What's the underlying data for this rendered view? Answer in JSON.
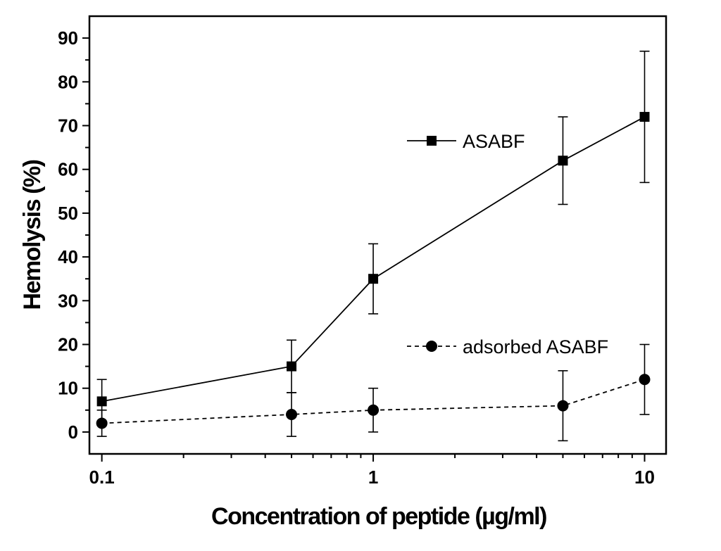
{
  "chart_data": {
    "type": "line",
    "xlabel": "Concentration of peptide (µg/ml)",
    "ylabel": "Hemolysis (%)",
    "xscale": "log",
    "xlim": [
      0.09,
      12
    ],
    "ylim": [
      -5,
      95
    ],
    "x_ticks": [
      0.1,
      1,
      10
    ],
    "x_tick_labels": [
      "0.1",
      "1",
      "10"
    ],
    "y_ticks": [
      0,
      10,
      20,
      30,
      40,
      50,
      60,
      70,
      80,
      90
    ],
    "y_tick_labels": [
      "0",
      "10",
      "20",
      "30",
      "40",
      "50",
      "60",
      "70",
      "80",
      "90"
    ],
    "grid": false,
    "legend_position": "right",
    "series": [
      {
        "name": "ASABF",
        "marker": "square",
        "line_style": "solid",
        "x": [
          0.1,
          0.5,
          1,
          5,
          10
        ],
        "y": [
          7,
          15,
          35,
          62,
          72
        ],
        "error": [
          5,
          6,
          8,
          10,
          15
        ]
      },
      {
        "name": "adsorbed ASABF",
        "marker": "circle",
        "line_style": "dashed",
        "x": [
          0.1,
          0.5,
          1,
          5,
          10
        ],
        "y": [
          2,
          4,
          5,
          6,
          12
        ],
        "error": [
          3,
          5,
          5,
          8,
          8
        ]
      }
    ]
  }
}
